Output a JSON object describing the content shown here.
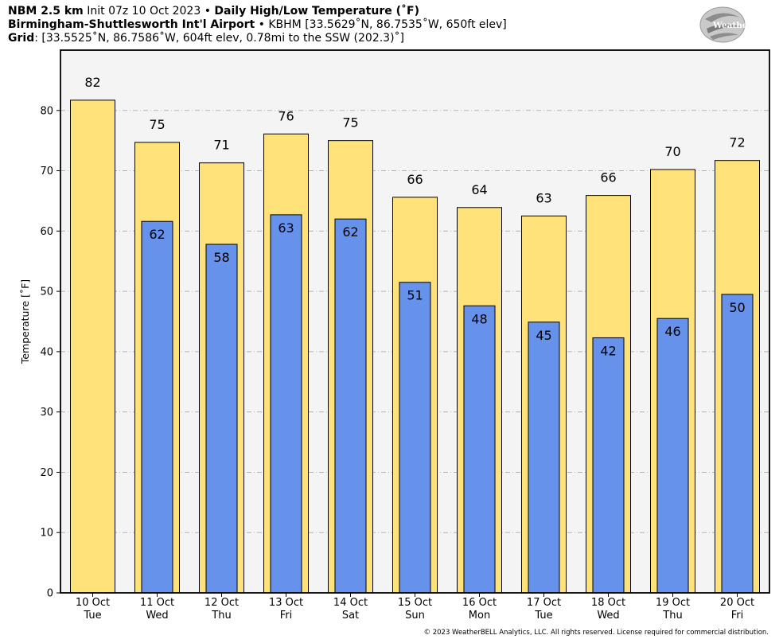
{
  "header": {
    "line1_model": "NBM 2.5 km",
    "line1_init": "Init 07z 10 Oct 2023",
    "line1_product": "Daily High/Low Temperature (˚F)",
    "line2_station": "Birmingham-Shuttlesworth Int'l Airport",
    "line2_details": "KBHM [33.5629˚N, 86.7535˚W, 650ft elev]",
    "line3_label": "Grid",
    "line3_details": ": [33.5525˚N, 86.7586˚W, 604ft elev, 0.78mi to the SSW (202.3)˚]",
    "bullet": "•"
  },
  "logo": {
    "text": "WeatherBELL",
    "icon": "weatherbell-swirl-logo"
  },
  "copyright": "© 2023 WeatherBELL Analytics, LLC. All rights reserved. License required for commercial distribution.",
  "colors": {
    "high_fill": "#ffe37a",
    "low_fill": "#6692ec",
    "plot_bg": "#f4f4f4",
    "grid": "#b3b3b3"
  },
  "chart_data": {
    "type": "bar",
    "ylabel": "Temperature [˚F]",
    "ylim": [
      0,
      90
    ],
    "yticks": [
      0,
      10,
      20,
      30,
      40,
      50,
      60,
      70,
      80
    ],
    "grid": true,
    "categories": [
      [
        "10 Oct",
        "Tue"
      ],
      [
        "11 Oct",
        "Wed"
      ],
      [
        "12 Oct",
        "Thu"
      ],
      [
        "13 Oct",
        "Fri"
      ],
      [
        "14 Oct",
        "Sat"
      ],
      [
        "15 Oct",
        "Sun"
      ],
      [
        "16 Oct",
        "Mon"
      ],
      [
        "17 Oct",
        "Tue"
      ],
      [
        "18 Oct",
        "Wed"
      ],
      [
        "19 Oct",
        "Thu"
      ],
      [
        "20 Oct",
        "Fri"
      ]
    ],
    "series": [
      {
        "name": "High",
        "values": [
          81.7,
          74.7,
          71.3,
          76.1,
          75.0,
          65.6,
          63.9,
          62.5,
          65.9,
          70.2,
          71.7
        ],
        "labels": [
          "82",
          "75",
          "71",
          "76",
          "75",
          "66",
          "64",
          "63",
          "66",
          "70",
          "72"
        ]
      },
      {
        "name": "Low",
        "values": [
          null,
          61.6,
          57.8,
          62.7,
          62.0,
          51.5,
          47.6,
          44.9,
          42.3,
          45.5,
          49.5
        ],
        "labels": [
          "",
          "62",
          "58",
          "63",
          "62",
          "51",
          "48",
          "45",
          "42",
          "46",
          "50"
        ]
      }
    ]
  }
}
